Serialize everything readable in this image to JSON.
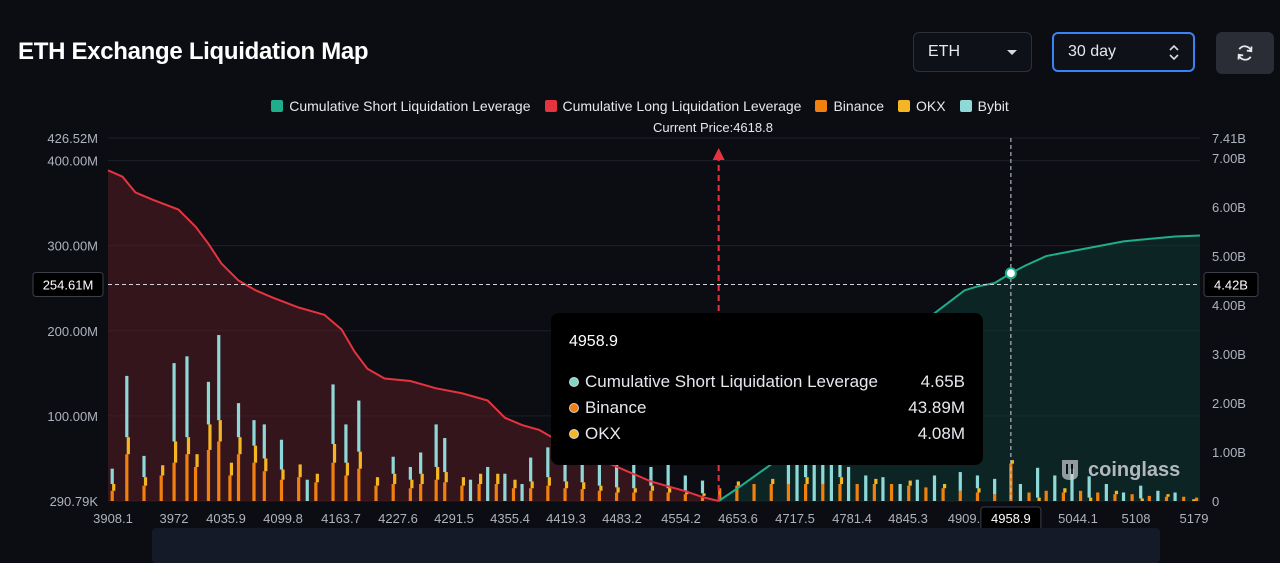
{
  "header": {
    "title": "ETH Exchange Liquidation Map",
    "asset_select": "ETH",
    "period_select": "30 day"
  },
  "legend": [
    {
      "label": "Cumulative Short Liquidation Leverage",
      "color": "#1fae8c"
    },
    {
      "label": "Cumulative Long Liquidation Leverage",
      "color": "#e5343f"
    },
    {
      "label": "Binance",
      "color": "#f0800f"
    },
    {
      "label": "OKX",
      "color": "#f5b623"
    },
    {
      "label": "Bybit",
      "color": "#8fd8d8"
    }
  ],
  "current_price_label": "Current Price:4618.8",
  "crosshair": {
    "left_value": "254.61M",
    "right_value": "4.42B",
    "x_value": "4958.9"
  },
  "tooltip": {
    "title": "4958.9",
    "rows": [
      {
        "label": "Cumulative Short Liquidation Leverage",
        "value": "4.65B",
        "color": "#7fd6c2"
      },
      {
        "label": "Binance",
        "value": "43.89M",
        "color": "#f0800f"
      },
      {
        "label": "OKX",
        "value": "4.08M",
        "color": "#f5b623"
      }
    ]
  },
  "watermark": "coinglass",
  "chart_data": {
    "type": "bar",
    "title": "ETH Exchange Liquidation Map",
    "x_tick_labels": [
      "3908.1",
      "3972",
      "4035.9",
      "4099.8",
      "4163.7",
      "4227.6",
      "4291.5",
      "4355.4",
      "4419.3",
      "4483.2",
      "4554.2",
      "4653.6",
      "4717.5",
      "4781.4",
      "4845.3",
      "4909.",
      "5044.1",
      "5108",
      "5179"
    ],
    "x_range": [
      3908.1,
      5179
    ],
    "y_left_tick_labels": [
      "426.52M",
      "400.00M",
      "300.00M",
      "200.00M",
      "100.00M",
      "290.79K"
    ],
    "y_left_range": [
      0,
      426.52
    ],
    "y_left_unit": "M",
    "y_right_tick_labels": [
      "7.41B",
      "7.00B",
      "6.00B",
      "5.00B",
      "4.00B",
      "3.00B",
      "2.00B",
      "1.00B",
      "0"
    ],
    "y_right_range": [
      0,
      7.41
    ],
    "y_right_unit": "B",
    "current_price": 4618.8,
    "series": [
      {
        "name": "Cumulative Long Liquidation Leverage",
        "type": "line",
        "axis": "right",
        "x": [
          3908.1,
          3925,
          3940,
          3960,
          3990,
          4010,
          4025,
          4040,
          4060,
          4080,
          4100,
          4130,
          4160,
          4180,
          4195,
          4210,
          4230,
          4260,
          4290,
          4320,
          4350,
          4370,
          4390,
          4410,
          4425,
          4440,
          4460,
          4480,
          4500,
          4520,
          4540,
          4560,
          4580,
          4600,
          4618.8
        ],
        "values": [
          6.75,
          6.62,
          6.3,
          6.15,
          5.95,
          5.6,
          5.25,
          4.85,
          4.5,
          4.3,
          4.15,
          3.95,
          3.8,
          3.5,
          3.05,
          2.7,
          2.5,
          2.45,
          2.3,
          2.2,
          2.05,
          1.7,
          1.55,
          1.45,
          1.3,
          1.15,
          1.0,
          0.85,
          0.7,
          0.55,
          0.4,
          0.3,
          0.2,
          0.08,
          0.0
        ]
      },
      {
        "name": "Cumulative Short Liquidation Leverage",
        "type": "line",
        "axis": "right",
        "x": [
          4618.8,
          4640,
          4660,
          4680,
          4700,
          4720,
          4740,
          4760,
          4780,
          4800,
          4830,
          4860,
          4890,
          4905,
          4920,
          4940,
          4958.9,
          4975,
          5000,
          5030,
          5060,
          5090,
          5120,
          5150,
          5179
        ],
        "values": [
          0.0,
          0.25,
          0.5,
          0.75,
          1.0,
          1.25,
          1.5,
          1.8,
          2.2,
          2.6,
          3.3,
          3.7,
          4.1,
          4.3,
          4.38,
          4.45,
          4.65,
          4.8,
          5.0,
          5.1,
          5.2,
          5.3,
          5.35,
          5.4,
          5.42
        ]
      },
      {
        "name": "Bybit",
        "type": "bar",
        "axis": "left",
        "x": [
          3913,
          3930,
          3950,
          3985,
          4000,
          4025,
          4037,
          4060,
          4078,
          4090,
          4110,
          4140,
          4170,
          4185,
          4200,
          4240,
          4260,
          4272,
          4290,
          4300,
          4330,
          4350,
          4370,
          4390,
          4400,
          4420,
          4440,
          4460,
          4480,
          4500,
          4520,
          4540,
          4560,
          4580,
          4600,
          4700,
          4710,
          4720,
          4730,
          4740,
          4750,
          4760,
          4770,
          4790,
          4810,
          4830,
          4850,
          4870,
          4900,
          4920,
          4940,
          4970,
          4990,
          5010,
          5030,
          5050,
          5070,
          5090,
          5110,
          5130,
          5150
        ],
        "values": [
          18,
          72,
          25,
          92,
          95,
          50,
          100,
          40,
          30,
          40,
          35,
          25,
          70,
          45,
          60,
          20,
          15,
          25,
          50,
          40,
          25,
          40,
          32,
          20,
          28,
          35,
          30,
          22,
          35,
          28,
          40,
          22,
          28,
          18,
          15,
          130,
          90,
          155,
          100,
          120,
          60,
          50,
          40,
          30,
          28,
          20,
          25,
          30,
          22,
          15,
          18,
          20,
          35,
          30,
          38,
          25,
          20,
          10,
          15,
          12,
          10
        ]
      },
      {
        "name": "Binance",
        "type": "bar",
        "axis": "left",
        "x": [
          3913,
          3930,
          3950,
          3970,
          3985,
          4000,
          4010,
          4025,
          4037,
          4050,
          4060,
          4078,
          4090,
          4110,
          4130,
          4150,
          4170,
          4185,
          4200,
          4220,
          4240,
          4260,
          4272,
          4290,
          4300,
          4320,
          4340,
          4360,
          4380,
          4400,
          4420,
          4440,
          4460,
          4480,
          4500,
          4520,
          4540,
          4560,
          4580,
          4600,
          4620,
          4640,
          4660,
          4680,
          4700,
          4720,
          4740,
          4760,
          4780,
          4800,
          4820,
          4840,
          4860,
          4880,
          4900,
          4920,
          4940,
          4958.9,
          4980,
          5000,
          5020,
          5040,
          5060,
          5080,
          5100,
          5120,
          5140,
          5160,
          5175
        ],
        "values": [
          12,
          55,
          18,
          30,
          45,
          55,
          40,
          60,
          70,
          30,
          55,
          45,
          35,
          25,
          28,
          22,
          45,
          30,
          38,
          18,
          20,
          15,
          20,
          25,
          22,
          18,
          20,
          20,
          15,
          15,
          18,
          15,
          14,
          12,
          10,
          10,
          12,
          10,
          8,
          6,
          15,
          18,
          20,
          20,
          20,
          20,
          20,
          20,
          20,
          20,
          20,
          18,
          16,
          15,
          12,
          10,
          8,
          43.89,
          10,
          12,
          10,
          12,
          10,
          8,
          8,
          6,
          5,
          5,
          4
        ]
      },
      {
        "name": "OKX",
        "type": "bar",
        "axis": "left",
        "x": [
          3913,
          3930,
          3950,
          3970,
          3985,
          4000,
          4010,
          4025,
          4037,
          4050,
          4060,
          4078,
          4090,
          4110,
          4130,
          4150,
          4170,
          4185,
          4200,
          4220,
          4240,
          4260,
          4272,
          4290,
          4300,
          4320,
          4340,
          4360,
          4380,
          4400,
          4420,
          4440,
          4460,
          4480,
          4500,
          4520,
          4540,
          4560,
          4580,
          4600,
          4640,
          4680,
          4720,
          4760,
          4800,
          4840,
          4880,
          4920,
          4958.9,
          4990,
          5020,
          5050,
          5080,
          5110,
          5140,
          5170
        ],
        "values": [
          8,
          20,
          10,
          12,
          25,
          20,
          15,
          30,
          25,
          15,
          20,
          20,
          15,
          12,
          15,
          10,
          22,
          15,
          20,
          10,
          12,
          10,
          12,
          15,
          12,
          10,
          12,
          12,
          10,
          8,
          10,
          8,
          8,
          6,
          6,
          5,
          6,
          5,
          4,
          3,
          5,
          6,
          8,
          8,
          6,
          6,
          5,
          5,
          4.08,
          4,
          5,
          4,
          4,
          3,
          3,
          2
        ]
      }
    ]
  }
}
